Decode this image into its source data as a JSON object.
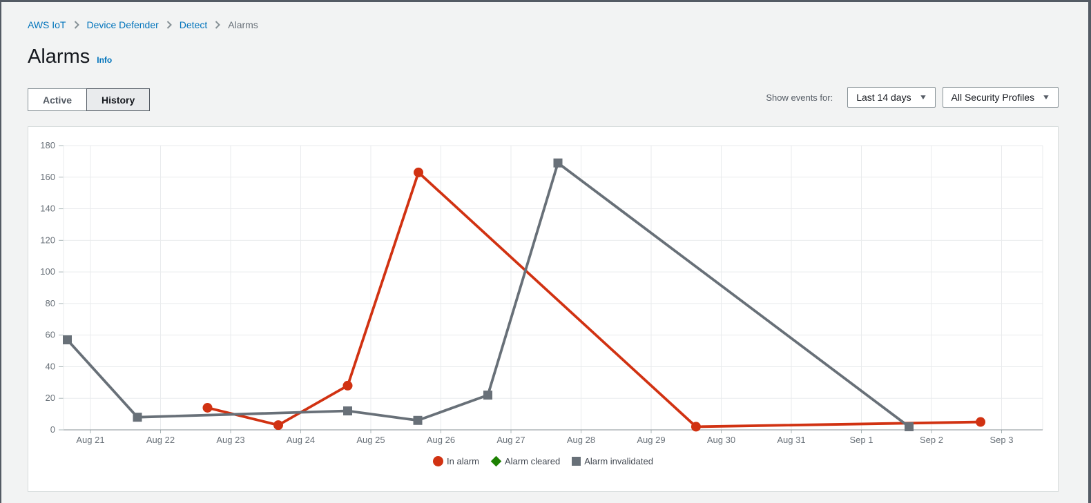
{
  "page": {
    "breadcrumb": {
      "items": [
        {
          "label": "AWS IoT",
          "link": true
        },
        {
          "label": "Device Defender",
          "link": true
        },
        {
          "label": "Detect",
          "link": true
        },
        {
          "label": "Alarms",
          "link": false
        }
      ]
    },
    "title": "Alarms",
    "info_label": "Info",
    "tabs": {
      "items": [
        {
          "label": "Active",
          "selected": false
        },
        {
          "label": "History",
          "selected": true
        }
      ]
    },
    "filters": {
      "show_events_label": "Show events for:",
      "time_range": "Last 14 days",
      "security_profile": "All Security Profiles"
    },
    "colors": {
      "link_blue": "#0073bb",
      "in_alarm_red": "#d13212",
      "alarm_cleared_green": "#1d8102",
      "alarm_invalidated_gray": "#687078"
    }
  },
  "chart_data": {
    "type": "line",
    "title": "",
    "xlabel": "",
    "ylabel": "",
    "x_axis": {
      "tick_labels": [
        "Aug 21",
        "Aug 22",
        "Aug 23",
        "Aug 24",
        "Aug 25",
        "Aug 26",
        "Aug 27",
        "Aug 28",
        "Aug 29",
        "Aug 30",
        "Aug 31",
        "Sep 1",
        "Sep 2",
        "Sep 3"
      ],
      "note": "x = days after Aug 21 tick; events occur at roughly 16:00 each day"
    },
    "y_axis": {
      "min": 0,
      "max": 180,
      "tick_step": 20
    },
    "grid": true,
    "legend_position": "bottom-center",
    "series": [
      {
        "name": "In alarm",
        "color": "#d13212",
        "marker": "circle",
        "points": [
          {
            "x": 1.67,
            "date": "Aug 22",
            "value": 14
          },
          {
            "x": 2.68,
            "date": "Aug 23",
            "value": 3
          },
          {
            "x": 3.67,
            "date": "Aug 24",
            "value": 28
          },
          {
            "x": 4.68,
            "date": "Aug 25",
            "value": 163
          },
          {
            "x": 8.64,
            "date": "Aug 29",
            "value": 2
          },
          {
            "x": 12.7,
            "date": "Sep 2",
            "value": 5
          }
        ]
      },
      {
        "name": "Alarm cleared",
        "color": "#1d8102",
        "marker": "diamond",
        "points": []
      },
      {
        "name": "Alarm invalidated",
        "color": "#687078",
        "marker": "square",
        "points": [
          {
            "x": -0.33,
            "date": "Aug 20",
            "value": 57
          },
          {
            "x": 0.67,
            "date": "Aug 21",
            "value": 8
          },
          {
            "x": 3.67,
            "date": "Aug 24",
            "value": 12
          },
          {
            "x": 4.67,
            "date": "Aug 25",
            "value": 6
          },
          {
            "x": 5.67,
            "date": "Aug 26",
            "value": 22
          },
          {
            "x": 6.67,
            "date": "Aug 27",
            "value": 169
          },
          {
            "x": 11.68,
            "date": "Sep 1",
            "value": 2
          }
        ]
      }
    ]
  }
}
